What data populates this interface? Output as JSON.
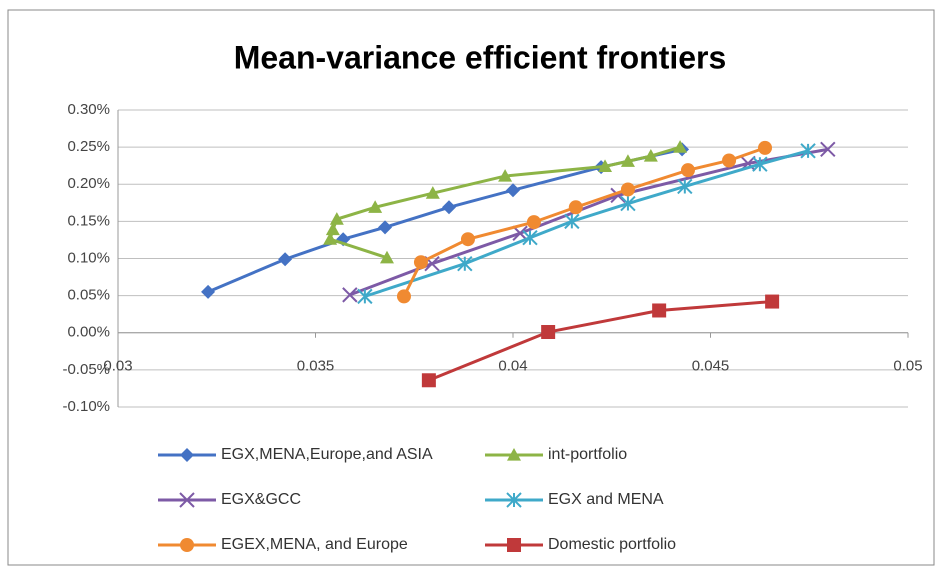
{
  "chart_data": {
    "type": "line",
    "title": "Mean-variance  efficient frontiers",
    "xlim": [
      0.03,
      0.05
    ],
    "xticks": [
      0.03,
      0.035,
      0.04,
      0.045,
      0.05
    ],
    "ylim": [
      -0.1,
      0.3
    ],
    "yticks": [
      {
        "value": -0.1,
        "label": "-0.10%"
      },
      {
        "value": -0.05,
        "label": "-0.05%"
      },
      {
        "value": 0,
        "label": "0.00%"
      },
      {
        "value": 0.05,
        "label": "0.05%"
      },
      {
        "value": 0.1,
        "label": "0.10%"
      },
      {
        "value": 0.15,
        "label": "0.15%"
      },
      {
        "value": 0.2,
        "label": "0.20%"
      },
      {
        "value": 0.25,
        "label": "0.25%"
      },
      {
        "value": 0.3,
        "label": "0.30%"
      }
    ],
    "grid": true,
    "legend": "bottom",
    "series": [
      {
        "name": "EGX,MENA,Europe,and ASIA",
        "color": "#4472c4",
        "marker": "diamond",
        "x": [
          0.03228,
          0.03423,
          0.0357,
          0.03676,
          0.03838,
          0.04,
          0.04223,
          0.04428
        ],
        "values": [
          0.055,
          0.099,
          0.126,
          0.142,
          0.169,
          0.192,
          0.223,
          0.247
        ]
      },
      {
        "name": "int-portfolio",
        "color": "#8db446",
        "marker": "triangle",
        "x": [
          0.03681,
          0.03537,
          0.03544,
          0.03554,
          0.03651,
          0.03797,
          0.0398,
          0.04233,
          0.04291,
          0.04349,
          0.04423
        ],
        "values": [
          0.101,
          0.126,
          0.139,
          0.153,
          0.169,
          0.188,
          0.211,
          0.224,
          0.231,
          0.238,
          0.25
        ]
      },
      {
        "name": "EGX&GCC",
        "color": "#7d5aa6",
        "marker": "x",
        "x": [
          0.03587,
          0.03795,
          0.04018,
          0.04266,
          0.04595,
          0.04797
        ],
        "values": [
          0.051,
          0.093,
          0.134,
          0.185,
          0.228,
          0.247
        ]
      },
      {
        "name": "EGX and MENA",
        "color": "#3fa9c9",
        "marker": "star",
        "x": [
          0.03625,
          0.03878,
          0.04043,
          0.04149,
          0.04291,
          0.04435,
          0.04625,
          0.04747
        ],
        "values": [
          0.049,
          0.093,
          0.128,
          0.15,
          0.174,
          0.197,
          0.227,
          0.245
        ]
      },
      {
        "name": "EGEX,MENA, and Europe",
        "color": "#f08a31",
        "marker": "circle",
        "x": [
          0.03724,
          0.03767,
          0.03886,
          0.04053,
          0.04159,
          0.04291,
          0.04443,
          0.04547,
          0.04638
        ],
        "values": [
          0.049,
          0.095,
          0.126,
          0.149,
          0.169,
          0.193,
          0.219,
          0.232,
          0.249
        ]
      },
      {
        "name": "Domestic portfolio",
        "color": "#c0393a",
        "marker": "square",
        "x": [
          0.03787,
          0.04089,
          0.0437,
          0.04656
        ],
        "values": [
          -0.064,
          0.001,
          0.03,
          0.042
        ]
      }
    ]
  }
}
